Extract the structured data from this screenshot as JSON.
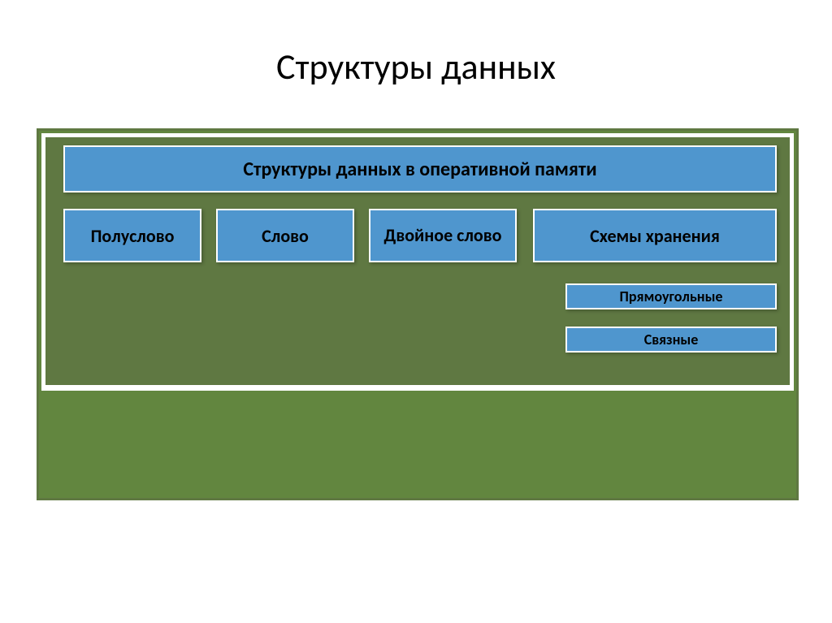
{
  "type": "hierarchy-diagram",
  "colors": {
    "page_bg": "#ffffff",
    "frame_border": "#5f7842",
    "frame_fill": "#62863f",
    "content_bg": "#ffffff",
    "inner_fill": "#5f7842",
    "box_fill": "#4f96ce",
    "box_border": "#ffffff",
    "title_text": "#000000",
    "box_text": "#000000"
  },
  "title": {
    "text": "Структуры данных",
    "fontsize": 44,
    "weight": 400
  },
  "header_box": {
    "label": "Структуры данных в оперативной памяти",
    "fontsize": 24
  },
  "row": {
    "fontsize": 22,
    "items": [
      {
        "label": "Полуслово"
      },
      {
        "label": "Слово"
      },
      {
        "label": "Двойное слово"
      },
      {
        "label": "Схемы хранения"
      }
    ]
  },
  "subitems": {
    "fontsize": 18,
    "items": [
      {
        "label": "Прямоугольные"
      },
      {
        "label": "Связные"
      }
    ]
  }
}
